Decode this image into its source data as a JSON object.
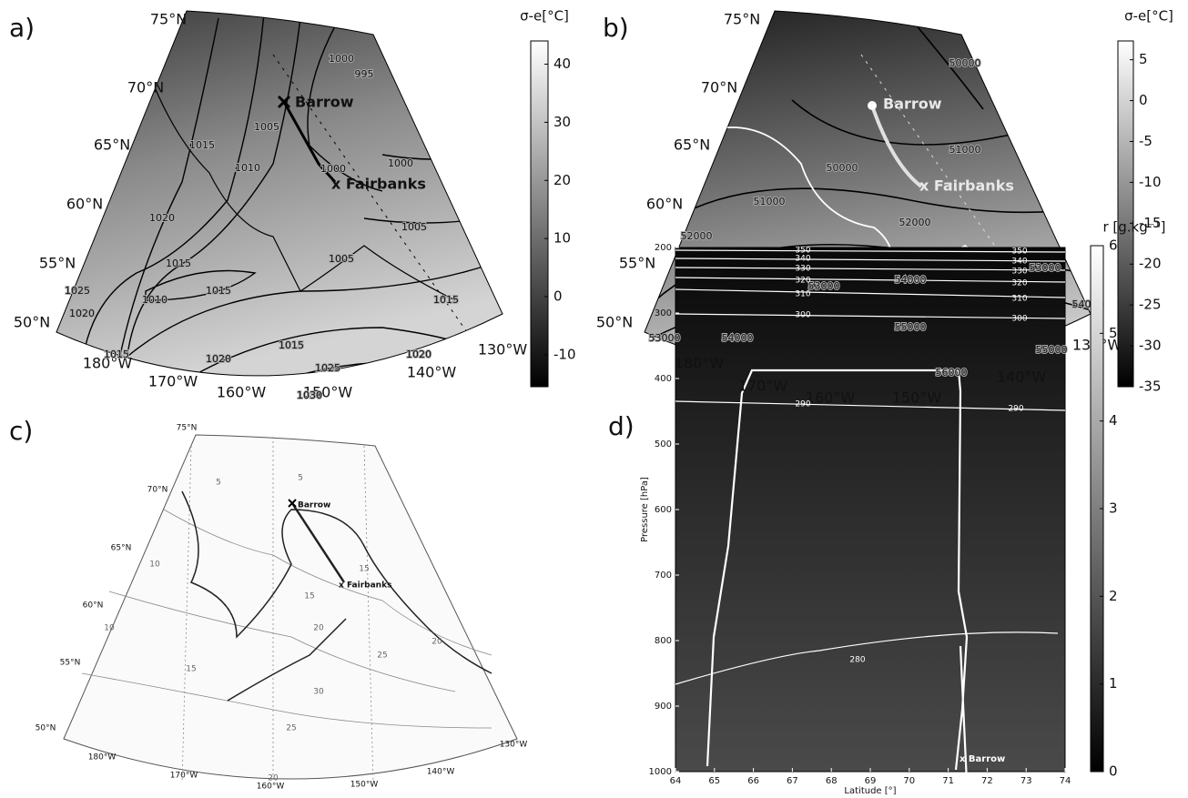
{
  "panels": [
    {
      "label": "a)",
      "colorbar": {
        "title": "σ-e[°C]",
        "lim": [
          -15.5,
          44
        ],
        "ticks": [
          40,
          30,
          20,
          10,
          0,
          -10
        ]
      },
      "lat_labels": [
        "75°N",
        "70°N",
        "65°N",
        "60°N",
        "55°N",
        "50°N"
      ],
      "lon_labels": [
        "180°W",
        "170°W",
        "160°W",
        "150°W",
        "140°W",
        "130°W"
      ],
      "stations": [
        "Barrow",
        "x Fairbanks"
      ],
      "contour_labels": [
        1000,
        995,
        1005,
        1000,
        1015,
        1010,
        1020,
        1015,
        1005,
        1015,
        1010,
        1025,
        1020,
        1015,
        1015,
        1020,
        1025,
        1020,
        1030,
        1000,
        1005,
        1015
      ]
    },
    {
      "label": "b)",
      "colorbar": {
        "title": "σ-e[°C]",
        "lim": [
          -35,
          7.3
        ],
        "ticks": [
          5,
          0,
          -5,
          -10,
          -15,
          -20,
          -25,
          -30,
          -35
        ]
      },
      "lat_labels": [
        "75°N",
        "70°N",
        "65°N",
        "60°N",
        "55°N",
        "50°N"
      ],
      "lon_labels": [
        "180°W",
        "170°W",
        "160°W",
        "150°W",
        "140°W",
        "130°W"
      ],
      "stations": [
        "Barrow",
        "x Fairbanks"
      ],
      "contour_labels": [
        50000,
        51000,
        50000,
        51000,
        52000,
        52000,
        53000,
        53000,
        54000,
        55000,
        54000,
        53000,
        54000,
        55000,
        56000
      ]
    },
    {
      "label": "c)",
      "lat_labels": [
        "75°N",
        "70°N",
        "65°N",
        "60°N",
        "55°N",
        "50°N"
      ],
      "lon_labels": [
        "180°W",
        "170°W",
        "160°W",
        "150°W",
        "140°W",
        "130°W"
      ],
      "stations": [
        "Barrow",
        "x Fairbanks"
      ],
      "contour_labels": [
        5,
        5,
        10,
        15,
        15,
        20,
        25,
        20,
        30,
        25,
        20,
        15,
        10
      ]
    },
    {
      "label": "d)",
      "colorbar": {
        "title": "r [g.kg⁻¹]",
        "lim": [
          0,
          6
        ],
        "ticks": [
          0,
          1,
          2,
          3,
          4,
          5,
          6
        ]
      },
      "ylabel": "Pressure [hPa]",
      "xlabel": "Latitude [°]",
      "ylim": [
        200,
        1000
      ],
      "yticks": [
        200,
        300,
        400,
        500,
        600,
        700,
        800,
        900,
        1000
      ],
      "xlim": [
        64,
        74
      ],
      "xticks": [
        64,
        65,
        66,
        67,
        68,
        69,
        70,
        71,
        72,
        73,
        74
      ],
      "isentrope_labels_left": [
        350,
        340,
        330,
        320,
        310,
        300,
        290,
        280
      ],
      "isentrope_labels_right": [
        350,
        340,
        330,
        320,
        310,
        300,
        290
      ],
      "station": "x Barrow"
    }
  ]
}
